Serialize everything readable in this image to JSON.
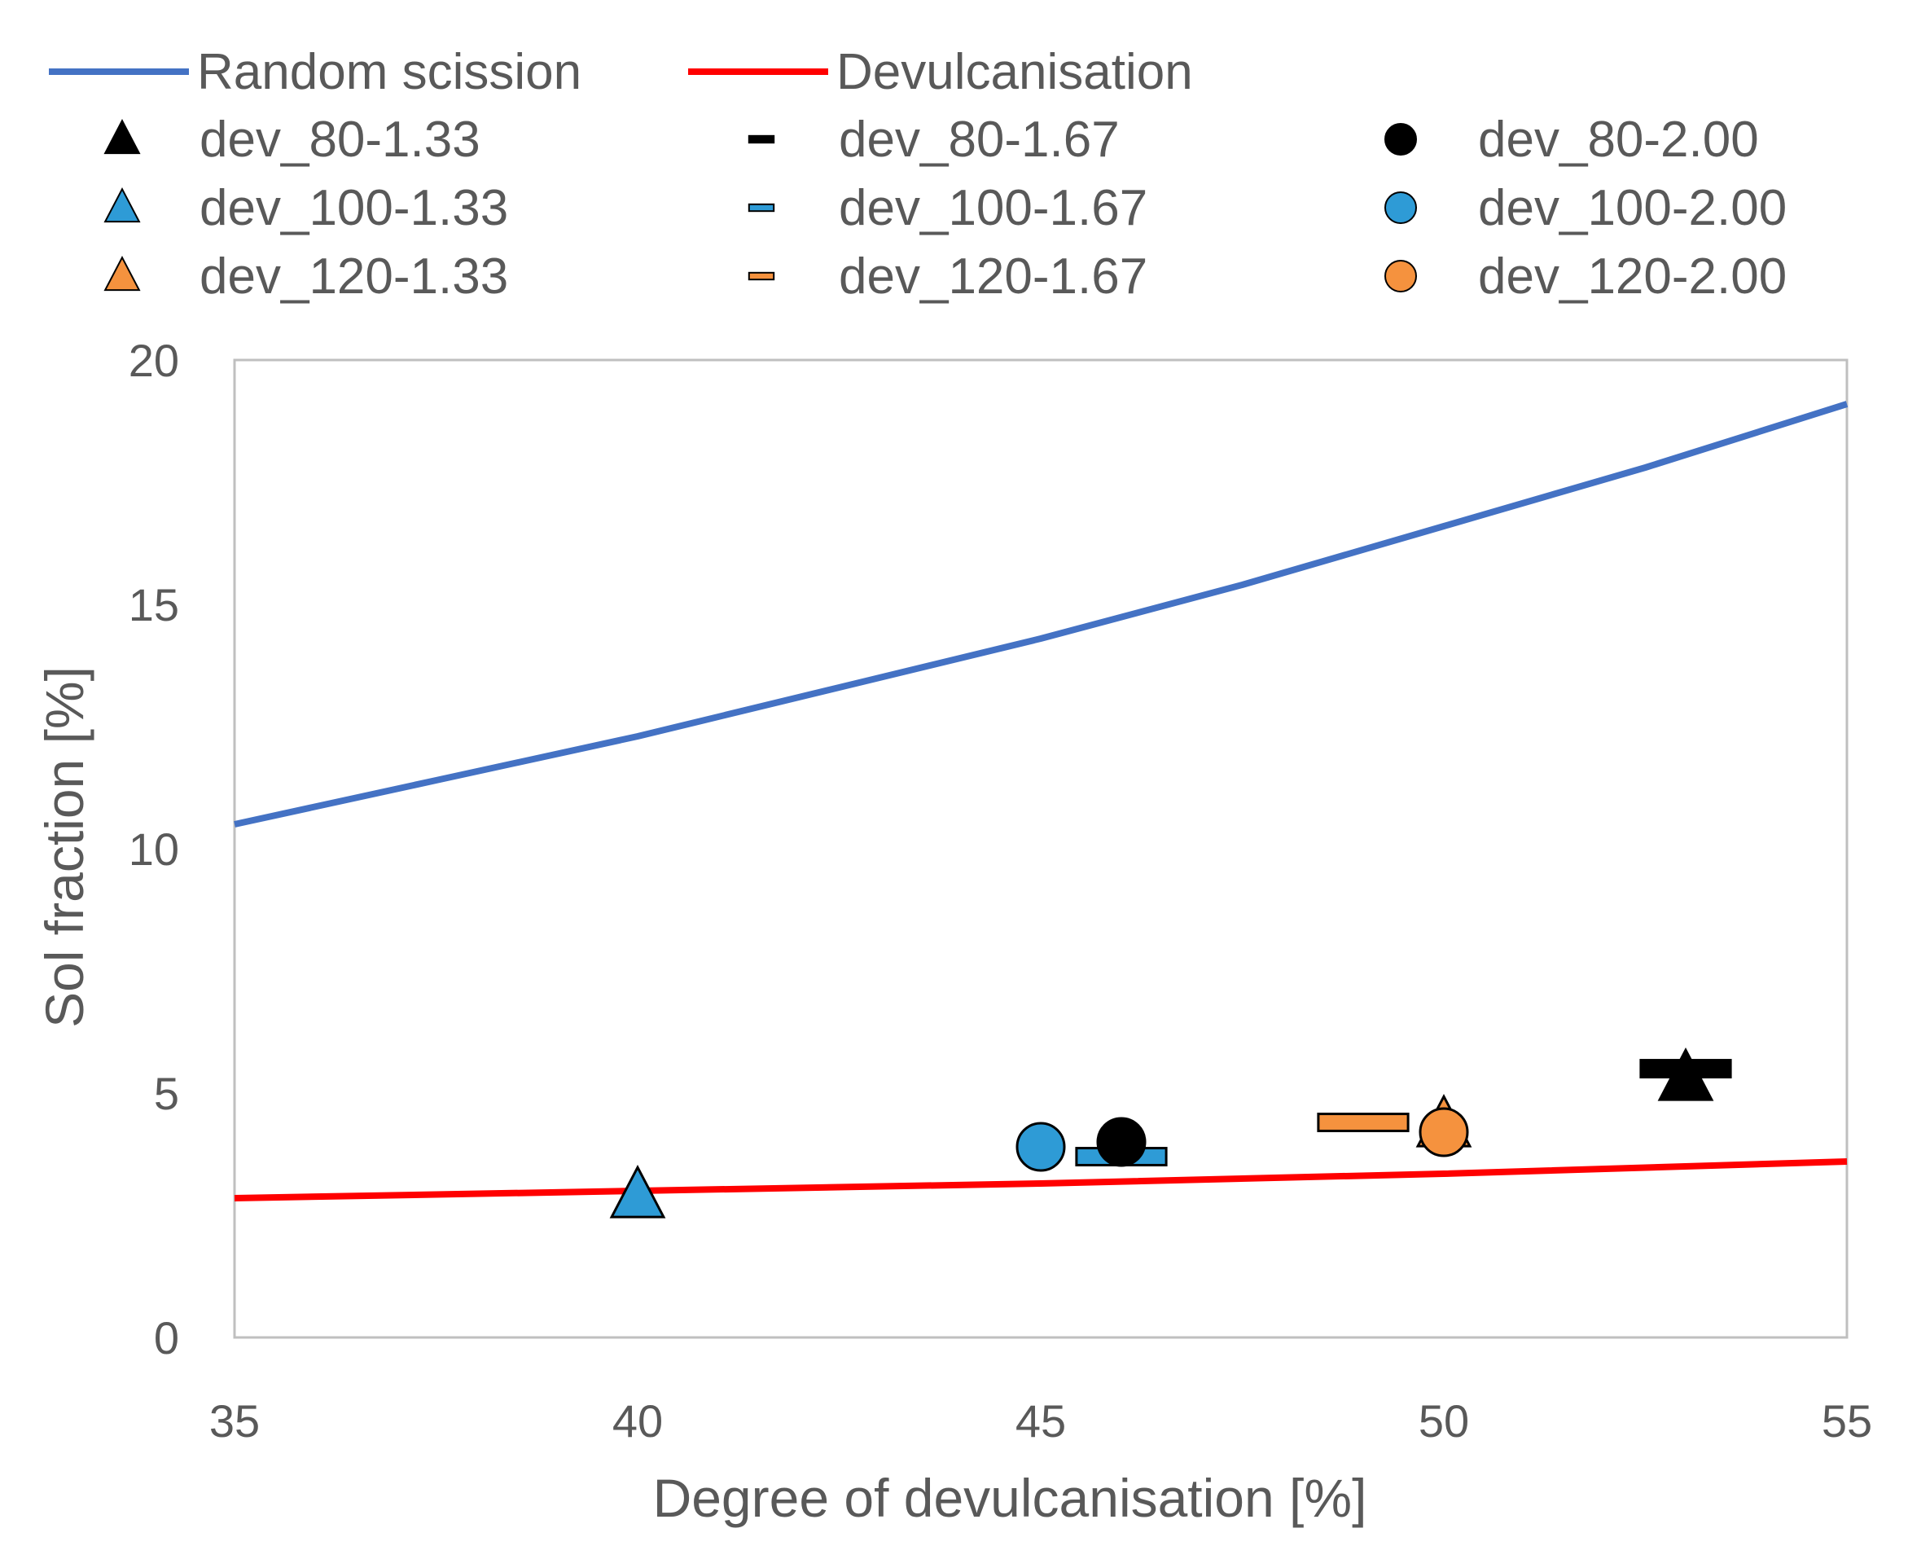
{
  "chart_data": {
    "type": "scatter",
    "title": "",
    "xlabel": "Degree of devulcanisation [%]",
    "ylabel": "Sol fraction [%]",
    "xlim": [
      35,
      55
    ],
    "ylim": [
      0,
      20
    ],
    "xticks": [
      35,
      40,
      45,
      50,
      55
    ],
    "yticks": [
      0,
      5,
      10,
      15,
      20
    ],
    "grid": false,
    "legend_position": "top",
    "lines": [
      {
        "name": "Random scission",
        "color": "#4472C4",
        "x": [
          35,
          37.5,
          40,
          42.5,
          45,
          47.5,
          50,
          52.5,
          55
        ],
        "y": [
          10.5,
          11.4,
          12.3,
          13.3,
          14.3,
          15.4,
          16.6,
          17.8,
          19.1
        ]
      },
      {
        "name": "Devulcanisation",
        "color": "#FF0000",
        "x": [
          35,
          40,
          45,
          50,
          55
        ],
        "y": [
          2.85,
          3.0,
          3.15,
          3.35,
          3.6
        ]
      }
    ],
    "series": [
      {
        "name": "dev_80-1.33",
        "marker": "triangle",
        "color": "#000000",
        "x": [
          53
        ],
        "y": [
          5.3
        ]
      },
      {
        "name": "dev_80-1.67",
        "marker": "dash",
        "color": "#000000",
        "x": [
          53
        ],
        "y": [
          5.5
        ]
      },
      {
        "name": "dev_80-2.00",
        "marker": "circle",
        "color": "#000000",
        "x": [
          46
        ],
        "y": [
          4.0
        ]
      },
      {
        "name": "dev_100-1.33",
        "marker": "triangle",
        "color": "#2E9BD6",
        "x": [
          40
        ],
        "y": [
          2.9
        ]
      },
      {
        "name": "dev_100-1.67",
        "marker": "dash",
        "color": "#2E9BD6",
        "x": [
          46
        ],
        "y": [
          3.7
        ]
      },
      {
        "name": "dev_100-2.00",
        "marker": "circle",
        "color": "#2E9BD6",
        "x": [
          45
        ],
        "y": [
          3.9
        ]
      },
      {
        "name": "dev_120-1.33",
        "marker": "triangle",
        "color": "#F5923E",
        "x": [
          50
        ],
        "y": [
          4.35
        ]
      },
      {
        "name": "dev_120-1.67",
        "marker": "dash",
        "color": "#F5923E",
        "x": [
          49
        ],
        "y": [
          4.4
        ]
      },
      {
        "name": "dev_120-2.00",
        "marker": "circle",
        "color": "#F5923E",
        "x": [
          50
        ],
        "y": [
          4.2
        ]
      }
    ]
  }
}
